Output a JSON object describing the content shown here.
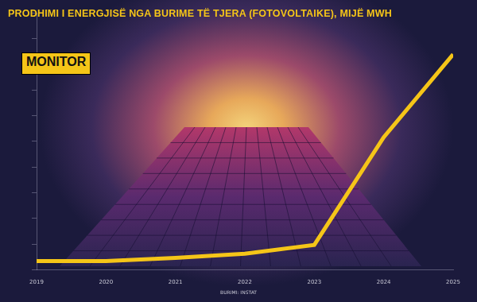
{
  "chart_data": {
    "type": "line",
    "title": "PRODHIMI I ENERGJISË NGA BURIME TË TJERA (FOTOVOLTAIKE), MIJË MWH",
    "logo": "MONITOR",
    "source": "BURIMI: INSTAT",
    "categories": [
      "2019",
      "2020",
      "2021",
      "2022",
      "2023",
      "2024",
      "2025"
    ],
    "values": [
      34,
      34,
      47,
      63,
      97,
      516,
      838
    ],
    "color": "#f5c518",
    "ylim": [
      0,
      1000
    ],
    "yticks": [
      0,
      100,
      200,
      300,
      400,
      500,
      600,
      700,
      800,
      900,
      1000
    ],
    "grid": false,
    "tick_labels": "x"
  }
}
